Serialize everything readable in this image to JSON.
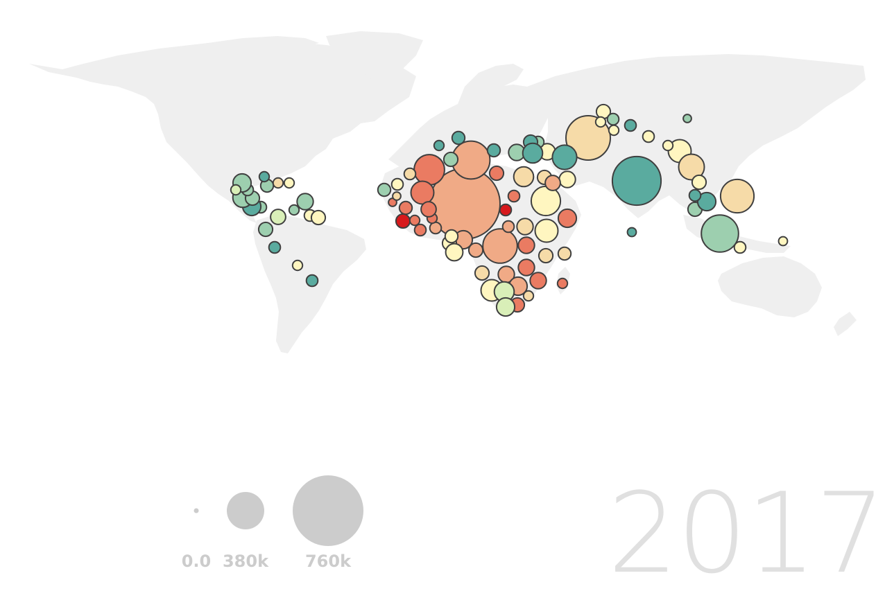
{
  "year": "2017",
  "legend": {
    "items": [
      {
        "label": "0.0",
        "value": 0
      },
      {
        "label": "380k",
        "value": 380000
      },
      {
        "label": "760k",
        "value": 760000
      }
    ]
  },
  "colors": {
    "land": "#efefef",
    "bubble_stroke": "#3f3f3f",
    "legend": "#cccccc",
    "year": "#e0e0e0",
    "scale": [
      "#d7191c",
      "#ea7b62",
      "#f0aa86",
      "#f6dba8",
      "#fff6c0",
      "#d9efb8",
      "#9dcfaf",
      "#5aab9f"
    ]
  },
  "bubble_values": [
    360000,
    760000,
    12000,
    20000,
    300000,
    210000,
    170000,
    130000,
    30000,
    20000,
    220000,
    180000,
    140000,
    80000,
    60000,
    40000,
    30000,
    25000,
    30000,
    50000,
    20000,
    20000,
    40000,
    30000,
    15000,
    80000,
    100000,
    30000,
    30000,
    50000,
    20000,
    15000,
    20000,
    20000,
    10000,
    15000,
    15000,
    20000,
    20000,
    20000,
    30000,
    15000,
    10000,
    10000,
    20000,
    25000,
    15000,
    25000,
    30000,
    25000,
    40000,
    40000,
    20000,
    30000,
    60000,
    90000,
    40000,
    30000,
    35000,
    80000,
    40000,
    20000,
    50000,
    30000,
    25000,
    45000,
    30000,
    40000,
    50000,
    40000,
    30000,
    15000,
    70000,
    60000,
    50000,
    35000,
    20000,
    15000,
    20000,
    15000,
    40000,
    20000,
    30000,
    30000,
    20000,
    50000,
    60000,
    30000,
    20000,
    50000,
    15000,
    25000,
    15000,
    15000,
    15000,
    12000,
    25000,
    15000,
    35000,
    15000,
    25000,
    12000
  ]
}
